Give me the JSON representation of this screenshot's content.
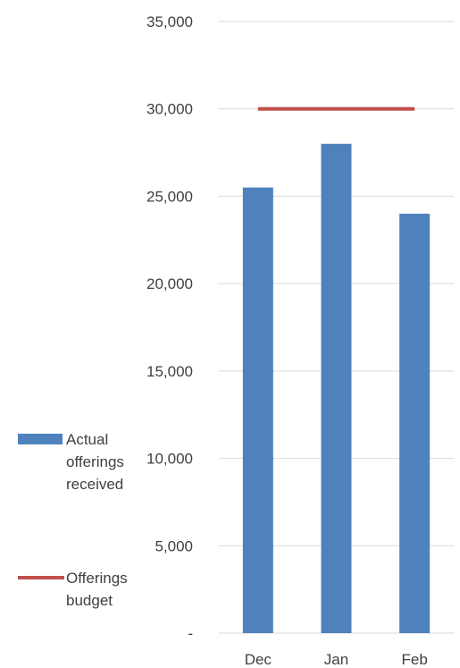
{
  "chart_data": {
    "type": "bar",
    "categories": [
      "Dec",
      "Jan",
      "Feb"
    ],
    "series": [
      {
        "name": "Actual offerings received",
        "type": "bar",
        "values": [
          25500,
          28000,
          24000
        ],
        "color": "#4F81BD"
      },
      {
        "name": "Offerings budget",
        "type": "line",
        "values": [
          30000,
          30000,
          30000
        ],
        "color": "#C0504D"
      }
    ],
    "ylim": [
      0,
      35000
    ],
    "yticks": [
      0,
      5000,
      10000,
      15000,
      20000,
      25000,
      30000,
      35000
    ],
    "ytick_labels": [
      "-",
      "5,000",
      "10,000",
      "15,000",
      "20,000",
      "25,000",
      "30,000",
      "35,000"
    ],
    "grid": true,
    "legend_position": "left",
    "legend": [
      {
        "lines": [
          "Actual",
          "offerings",
          "received"
        ],
        "kind": "bar",
        "color": "#4F81BD"
      },
      {
        "lines": [
          "Offerings",
          "budget"
        ],
        "kind": "line",
        "color": "#C0504D"
      }
    ]
  }
}
